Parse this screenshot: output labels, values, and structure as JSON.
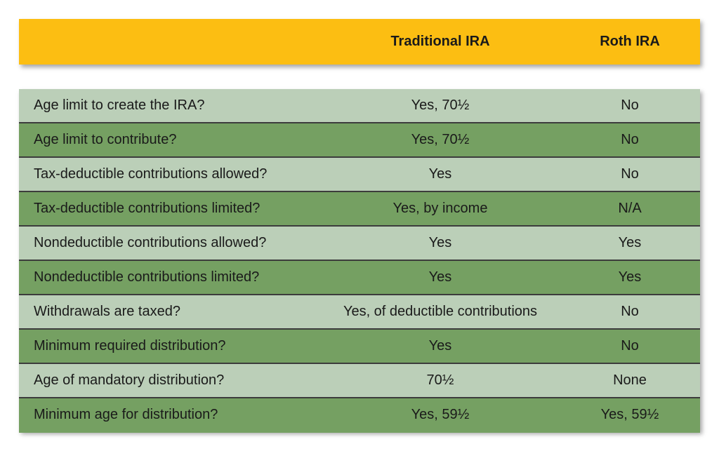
{
  "header": {
    "col_traditional": "Traditional IRA",
    "col_roth": "Roth IRA"
  },
  "rows": [
    {
      "label": "Age limit to create the IRA?",
      "traditional": "Yes, 70½",
      "roth": "No"
    },
    {
      "label": "Age limit to contribute?",
      "traditional": "Yes, 70½",
      "roth": "No"
    },
    {
      "label": "Tax-deductible contributions allowed?",
      "traditional": "Yes",
      "roth": "No"
    },
    {
      "label": "Tax-deductible contributions limited?",
      "traditional": "Yes, by income",
      "roth": "N/A"
    },
    {
      "label": "Nondeductible contributions allowed?",
      "traditional": "Yes",
      "roth": "Yes"
    },
    {
      "label": "Nondeductible contributions limited?",
      "traditional": "Yes",
      "roth": "Yes"
    },
    {
      "label": "Withdrawals are taxed?",
      "traditional": "Yes, of deductible contributions",
      "roth": "No"
    },
    {
      "label": "Minimum required distribution?",
      "traditional": "Yes",
      "roth": "No"
    },
    {
      "label": "Age of mandatory distribution?",
      "traditional": "70½",
      "roth": "None"
    },
    {
      "label": "Minimum age for distribution?",
      "traditional": "Yes, 59½",
      "roth": "Yes, 59½"
    }
  ],
  "colors": {
    "header": "#fcbe12",
    "row_light": "#bbcfb8",
    "row_dark": "#75a062"
  }
}
